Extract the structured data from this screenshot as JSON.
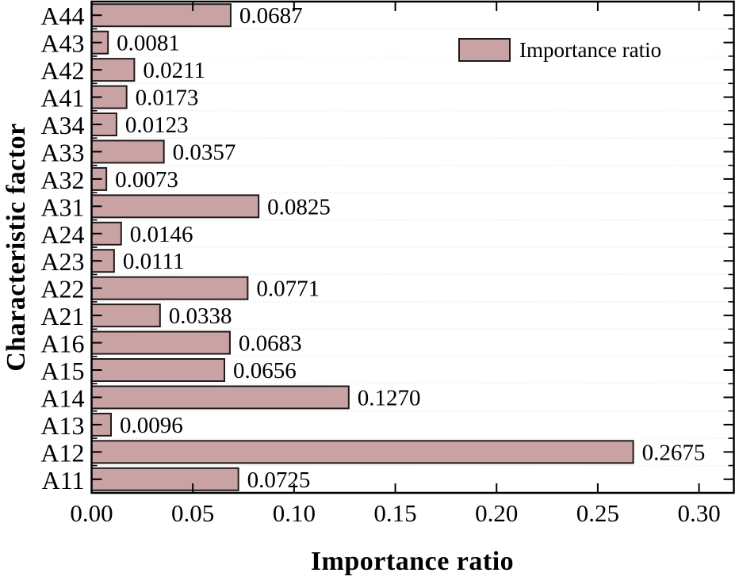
{
  "chart_data": {
    "type": "bar",
    "orientation": "horizontal",
    "title": "",
    "xlabel": "Importance ratio",
    "ylabel": "Characteristic factor",
    "legend_label": "Importance ratio",
    "legend_position": "top-right-inside",
    "grid": "dashed horizontal at category boundaries",
    "categories": [
      "A44",
      "A43",
      "A42",
      "A41",
      "A34",
      "A33",
      "A32",
      "A31",
      "A24",
      "A23",
      "A22",
      "A21",
      "A16",
      "A15",
      "A14",
      "A13",
      "A12",
      "A11"
    ],
    "values": [
      0.0687,
      0.0081,
      0.0211,
      0.0173,
      0.0123,
      0.0357,
      0.0073,
      0.0825,
      0.0146,
      0.0111,
      0.0771,
      0.0338,
      0.0683,
      0.0656,
      0.127,
      0.0096,
      0.2675,
      0.0725
    ],
    "value_labels": [
      "0.0687",
      "0.0081",
      "0.0211",
      "0.0173",
      "0.0123",
      "0.0357",
      "0.0073",
      "0.0825",
      "0.0146",
      "0.0111",
      "0.0771",
      "0.0338",
      "0.0683",
      "0.0656",
      "0.1270",
      "0.0096",
      "0.2675",
      "0.0725"
    ],
    "xlim": [
      0,
      0.3172
    ],
    "xticks": [
      0.0,
      0.05,
      0.1,
      0.15,
      0.2,
      0.25,
      0.3
    ],
    "xtick_labels": [
      "0.00",
      "0.05",
      "0.10",
      "0.15",
      "0.20",
      "0.25",
      "0.30"
    ],
    "colors": {
      "bar_fill": "#c9a3a3",
      "bar_stroke": "#201a1a",
      "axis": "#000000",
      "grid": "#ebebeb",
      "text": "#000000"
    }
  }
}
